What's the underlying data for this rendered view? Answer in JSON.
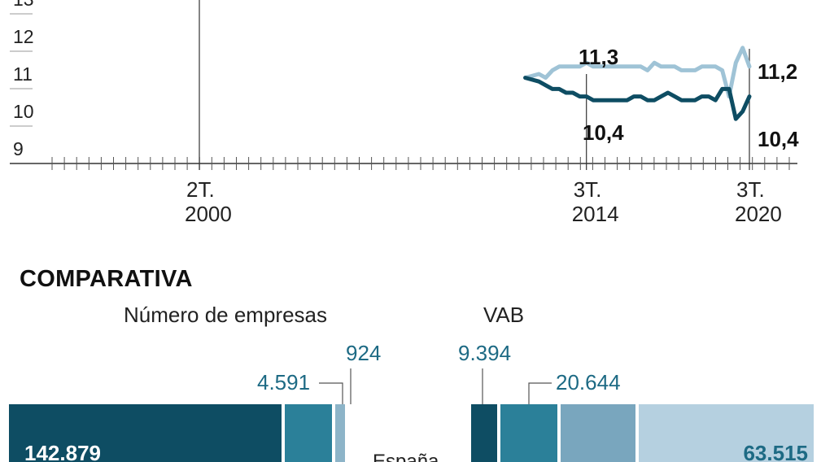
{
  "chart_data": [
    {
      "type": "line",
      "title": "",
      "xlabel": "",
      "ylabel": "",
      "ylim": [
        8.5,
        13.0
      ],
      "y_ticks": [
        9,
        10,
        11,
        12,
        13
      ],
      "y_tick_labels": [
        "9",
        "10",
        "11",
        "12",
        "13"
      ],
      "x_markers": [
        {
          "quarter": "2T.",
          "year": "2000",
          "x_index": 0
        },
        {
          "quarter": "3T.",
          "year": "2014",
          "x_index": 57
        },
        {
          "quarter": "3T.",
          "year": "2020",
          "x_index": 81
        }
      ],
      "series": [
        {
          "color": "#0e4d63",
          "x_index": [
            48,
            50,
            51,
            52,
            53,
            54,
            55,
            56,
            57,
            58,
            59,
            60,
            61,
            62,
            63,
            64,
            65,
            66,
            67,
            68,
            69,
            70,
            71,
            72,
            73,
            74,
            75,
            76,
            77,
            78,
            79,
            80,
            81
          ],
          "values": [
            10.9,
            10.8,
            10.7,
            10.6,
            10.6,
            10.5,
            10.5,
            10.4,
            10.4,
            10.3,
            10.3,
            10.3,
            10.3,
            10.3,
            10.3,
            10.4,
            10.4,
            10.3,
            10.3,
            10.4,
            10.5,
            10.4,
            10.3,
            10.3,
            10.3,
            10.4,
            10.4,
            10.3,
            10.6,
            10.6,
            9.8,
            10.0,
            10.4
          ]
        },
        {
          "color": "#9fc3d6",
          "x_index": [
            48,
            50,
            51,
            52,
            53,
            54,
            55,
            56,
            57,
            58,
            59,
            60,
            61,
            62,
            63,
            64,
            65,
            66,
            67,
            68,
            69,
            70,
            71,
            72,
            73,
            74,
            75,
            76,
            77,
            78,
            79,
            80,
            81
          ],
          "values": [
            10.9,
            11.0,
            10.9,
            11.1,
            11.2,
            11.2,
            11.2,
            11.2,
            11.3,
            11.2,
            11.2,
            11.2,
            11.2,
            11.2,
            11.2,
            11.2,
            11.2,
            11.1,
            11.3,
            11.2,
            11.2,
            11.2,
            11.1,
            11.1,
            11.1,
            11.2,
            11.2,
            11.2,
            11.1,
            10.4,
            11.3,
            11.7,
            11.2
          ]
        }
      ],
      "annotations": [
        {
          "label": "11,3",
          "year": "2014",
          "value": 11.3
        },
        {
          "label": "10,4",
          "year": "2014",
          "value": 10.4
        },
        {
          "label": "11,2",
          "year": "2020",
          "value": 11.2
        },
        {
          "label": "10,4",
          "year": "2020",
          "value": 10.4
        }
      ]
    },
    {
      "type": "bar",
      "title": "COMPARATIVA",
      "panels": [
        {
          "title": "Número de empresas",
          "segments": [
            {
              "value": 142879,
              "label": "142.879",
              "color": "#0e4d63"
            },
            {
              "value": 4591,
              "label": "4.591",
              "color": "#2b8099"
            },
            {
              "value": 924,
              "label": "924",
              "color": "#8db4c8"
            }
          ]
        },
        {
          "title": "VAB",
          "segments": [
            {
              "value": 9394,
              "label": "9.394",
              "color": "#0e4d63"
            },
            {
              "value": 20644,
              "label": "20.644",
              "color": "#2b8099"
            },
            {
              "value": null,
              "label": "",
              "color": "#79a6be"
            },
            {
              "value": 63515,
              "label": "63.515",
              "color": "#b5d0e0"
            }
          ]
        }
      ],
      "center_label": "España"
    }
  ]
}
